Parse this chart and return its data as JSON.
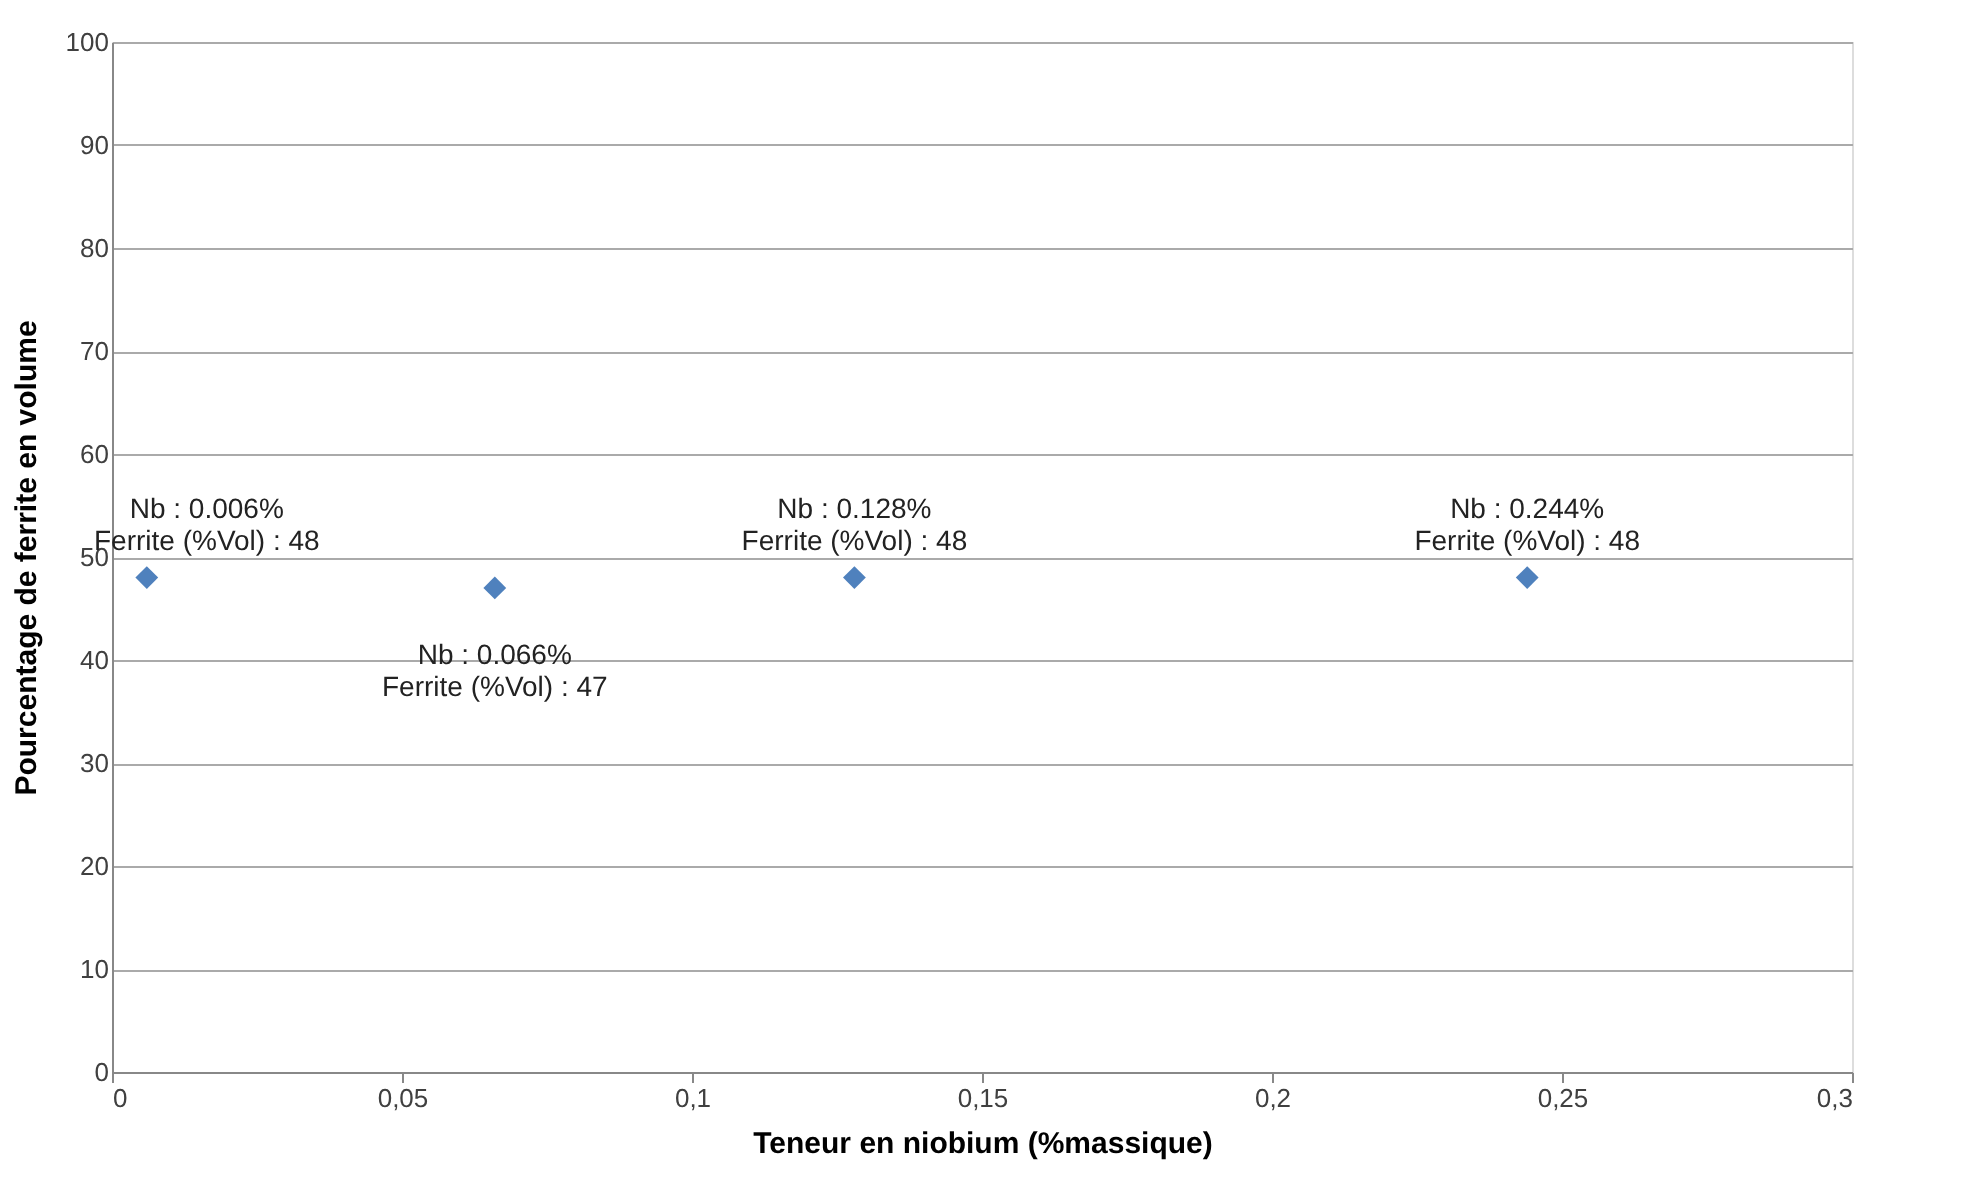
{
  "chart_data": {
    "type": "scatter",
    "xlabel": "Teneur en niobium (%massique)",
    "ylabel": "Pourcentage de ferrite en volume",
    "x": [
      0.006,
      0.066,
      0.128,
      0.244
    ],
    "series": [
      {
        "color": "#4f81bd",
        "values": [
          48,
          47,
          48,
          48
        ]
      }
    ],
    "marker": "diamond",
    "grid": "y",
    "xlim": [
      0,
      0.3
    ],
    "xticks": [
      0,
      {
        "value": 0.05,
        "label": "0,05"
      },
      {
        "value": 0.1,
        "label": "0,1"
      },
      {
        "value": 0.15,
        "label": "0,15"
      },
      {
        "value": 0.2,
        "label": "0,2"
      },
      {
        "value": 0.25,
        "label": "0,25"
      },
      {
        "value": 0.3,
        "label": "0,3"
      }
    ],
    "ylim": [
      0,
      100
    ],
    "yticks": [
      0,
      10,
      20,
      30,
      40,
      50,
      60,
      70,
      80,
      90,
      100
    ],
    "annotations": [
      {
        "text": "Nb : 0.006%\nFerrite (%Vol) : 48",
        "x": 0.006,
        "y": 48
      },
      {
        "text": "Nb : 0.066%\nFerrite (%Vol) : 47",
        "x": 0.066,
        "y": 47
      },
      {
        "text": "Nb : 0.128%\nFerrite (%Vol) : 48",
        "x": 0.128,
        "y": 48
      },
      {
        "text": "Nb : 0.244%\nFerrite (%Vol) : 48",
        "x": 0.244,
        "y": 48
      }
    ]
  }
}
